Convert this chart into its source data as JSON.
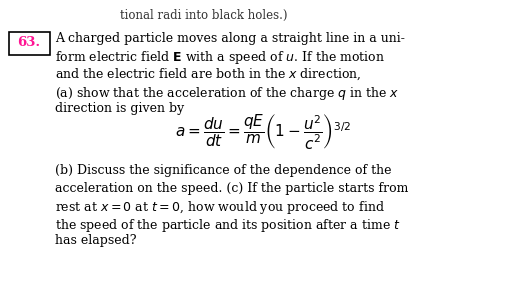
{
  "fig_width": 5.26,
  "fig_height": 2.91,
  "dpi": 100,
  "bg_color": "#ffffff",
  "top_text": "tional radi into black holes.)",
  "top_text_color": "#333333",
  "box_label": "63.",
  "box_label_color": "#ff1493",
  "box_edge_color": "#000000",
  "main_text_color": "#000000",
  "line1": "A charged particle moves along a straight line in a uni-",
  "line2": "form electric field $\\mathbf{E}$ with a speed of $u$. If the motion",
  "line3": "and the electric field are both in the $x$ direction,",
  "line4": "(a) show that the acceleration of the charge $q$ in the $x$",
  "line5": "direction is given by",
  "equation": "$a = \\dfrac{du}{dt} = \\dfrac{qE}{m}\\left(1 - \\dfrac{u^2}{c^2}\\right)^{3/2}$",
  "eq_fontsize": 11.0,
  "bline1": "(b) Discuss the significance of the dependence of the",
  "bline2": "acceleration on the speed. (c) If the particle starts from",
  "bline3": "rest at $x = 0$ at $t = 0$, how would you proceed to find",
  "bline4": "the speed of the particle and its position after a time $t$",
  "bline5": "has elapsed?",
  "fontsize": 9.0,
  "font": "DejaVu Serif"
}
